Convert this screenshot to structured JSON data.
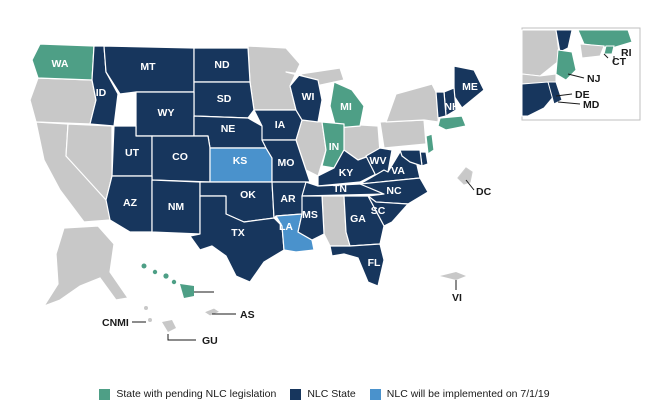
{
  "colors": {
    "pending": "#4e9f86",
    "nlc": "#17365d",
    "implemented": "#4a92cc",
    "other": "#c8c8c8",
    "inset_border": "#bfbfbf"
  },
  "legend": [
    {
      "key": "pending",
      "label": "State with pending NLC legislation"
    },
    {
      "key": "nlc",
      "label": "NLC State"
    },
    {
      "key": "implemented",
      "label": "NLC will be implemented on 7/1/19"
    }
  ],
  "states": {
    "WA": {
      "label": "WA",
      "status": "pending"
    },
    "MT": {
      "label": "MT",
      "status": "nlc"
    },
    "ND": {
      "label": "ND",
      "status": "nlc"
    },
    "ID": {
      "label": "ID",
      "status": "nlc"
    },
    "SD": {
      "label": "SD",
      "status": "nlc"
    },
    "WY": {
      "label": "WY",
      "status": "nlc"
    },
    "NE": {
      "label": "NE",
      "status": "nlc"
    },
    "UT": {
      "label": "UT",
      "status": "nlc"
    },
    "CO": {
      "label": "CO",
      "status": "nlc"
    },
    "KS": {
      "label": "KS",
      "status": "implemented"
    },
    "AZ": {
      "label": "AZ",
      "status": "nlc"
    },
    "NM": {
      "label": "NM",
      "status": "nlc"
    },
    "OK": {
      "label": "OK",
      "status": "nlc"
    },
    "TX": {
      "label": "TX",
      "status": "nlc"
    },
    "IA": {
      "label": "IA",
      "status": "nlc"
    },
    "MO": {
      "label": "MO",
      "status": "nlc"
    },
    "AR": {
      "label": "AR",
      "status": "nlc"
    },
    "LA": {
      "label": "LA",
      "status": "implemented"
    },
    "WI": {
      "label": "WI",
      "status": "nlc"
    },
    "MI": {
      "label": "MI",
      "status": "pending"
    },
    "IN": {
      "label": "IN",
      "status": "pending"
    },
    "KY": {
      "label": "KY",
      "status": "nlc"
    },
    "TN": {
      "label": "TN",
      "status": "nlc"
    },
    "MS": {
      "label": "MS",
      "status": "nlc"
    },
    "GA": {
      "label": "GA",
      "status": "nlc"
    },
    "FL": {
      "label": "FL",
      "status": "nlc"
    },
    "SC": {
      "label": "SC",
      "status": "nlc"
    },
    "NC": {
      "label": "NC",
      "status": "nlc"
    },
    "VA": {
      "label": "VA",
      "status": "nlc"
    },
    "WV": {
      "label": "WV",
      "status": "nlc"
    },
    "ME": {
      "label": "ME",
      "status": "nlc"
    },
    "NH": {
      "label": "NH",
      "status": "nlc"
    },
    "MA": {
      "label": "",
      "status": "pending"
    },
    "NJ": {
      "label": "NJ",
      "status": "pending"
    },
    "DE": {
      "label": "DE",
      "status": "nlc"
    },
    "MD": {
      "label": "MD",
      "status": "nlc"
    },
    "CT": {
      "label": "CT",
      "status": "other"
    },
    "RI": {
      "label": "RI",
      "status": "pending"
    },
    "VT": {
      "label": "",
      "status": "nlc"
    },
    "HI": {
      "label": "",
      "status": "pending"
    }
  },
  "callouts": {
    "DC": "DC",
    "AS": "AS",
    "CNMI": "CNMI",
    "GU": "GU",
    "VI": "VI",
    "NJ": "NJ",
    "DE": "DE",
    "MD": "MD",
    "CT": "CT",
    "RI": "RI"
  }
}
